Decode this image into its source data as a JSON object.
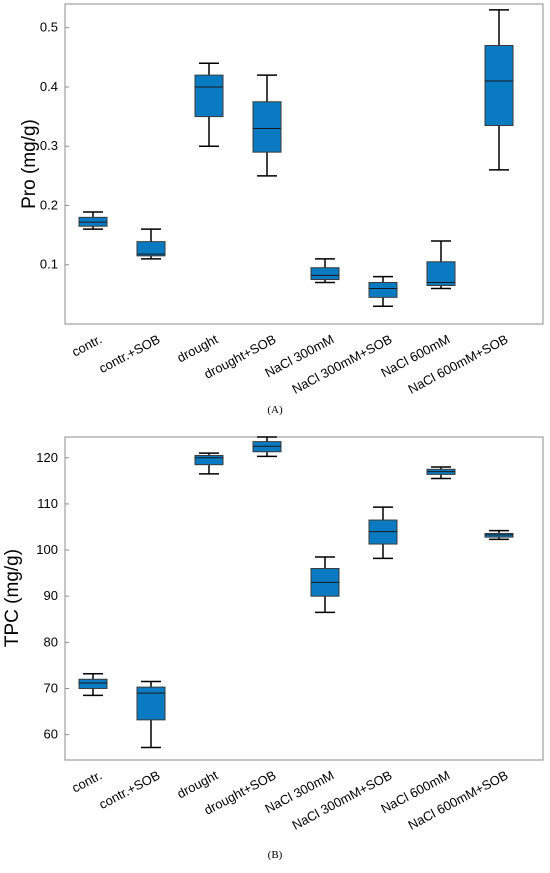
{
  "colors": {
    "box_fill": "#0a7bc2",
    "frame": "#8c8c8c"
  },
  "chart_data": [
    {
      "type": "box",
      "panel_label": "(A)",
      "ylabel": "Pro (mg/g)",
      "ylim": [
        0.0,
        0.54
      ],
      "yticks": [
        0.1,
        0.2,
        0.3,
        0.4,
        0.5
      ],
      "ytick_labels": [
        "0.1",
        "0.2",
        "0.3",
        "0.4",
        "0.5"
      ],
      "categories": [
        "contr.",
        "contr.+SOB",
        "drought",
        "drought+SOB",
        "NaCl 300mM",
        "NaCl 300mM+SOB",
        "NaCl 600mM",
        "NaCl 600mM+SOB"
      ],
      "boxes": [
        {
          "min": 0.16,
          "q1": 0.165,
          "median": 0.172,
          "q3": 0.18,
          "max": 0.189
        },
        {
          "min": 0.11,
          "q1": 0.115,
          "median": 0.118,
          "q3": 0.139,
          "max": 0.16
        },
        {
          "min": 0.3,
          "q1": 0.35,
          "median": 0.4,
          "q3": 0.42,
          "max": 0.44
        },
        {
          "min": 0.25,
          "q1": 0.29,
          "median": 0.33,
          "q3": 0.375,
          "max": 0.42
        },
        {
          "min": 0.07,
          "q1": 0.075,
          "median": 0.082,
          "q3": 0.095,
          "max": 0.11
        },
        {
          "min": 0.03,
          "q1": 0.045,
          "median": 0.06,
          "q3": 0.07,
          "max": 0.08
        },
        {
          "min": 0.06,
          "q1": 0.065,
          "median": 0.07,
          "q3": 0.105,
          "max": 0.14
        },
        {
          "min": 0.26,
          "q1": 0.335,
          "median": 0.41,
          "q3": 0.47,
          "max": 0.53
        }
      ]
    },
    {
      "type": "box",
      "panel_label": "(B)",
      "ylabel": "TPC (mg/g)",
      "ylim": [
        54.5,
        124.5
      ],
      "yticks": [
        60,
        70,
        80,
        90,
        100,
        110,
        120
      ],
      "ytick_labels": [
        "60",
        "70",
        "80",
        "90",
        "100",
        "110",
        "120"
      ],
      "categories": [
        "contr.",
        "contr.+SOB",
        "drought",
        "drought+SOB",
        "NaCl 300mM",
        "NaCl 300mM+SOB",
        "NaCl 600mM",
        "NaCl 600mM+SOB"
      ],
      "boxes": [
        {
          "min": 68.5,
          "q1": 70.0,
          "median": 71.2,
          "q3": 72.0,
          "max": 73.2
        },
        {
          "min": 57.2,
          "q1": 63.2,
          "median": 69.0,
          "q3": 70.3,
          "max": 71.5
        },
        {
          "min": 116.5,
          "q1": 118.5,
          "median": 120.0,
          "q3": 120.5,
          "max": 121.0
        },
        {
          "min": 120.3,
          "q1": 121.3,
          "median": 122.5,
          "q3": 123.5,
          "max": 124.5
        },
        {
          "min": 86.5,
          "q1": 90.0,
          "median": 93.0,
          "q3": 96.0,
          "max": 98.5
        },
        {
          "min": 98.2,
          "q1": 101.3,
          "median": 104.0,
          "q3": 106.5,
          "max": 109.3
        },
        {
          "min": 115.5,
          "q1": 116.4,
          "median": 117.0,
          "q3": 117.5,
          "max": 118.0
        },
        {
          "min": 102.3,
          "q1": 102.8,
          "median": 103.3,
          "q3": 103.6,
          "max": 104.2
        }
      ]
    }
  ]
}
